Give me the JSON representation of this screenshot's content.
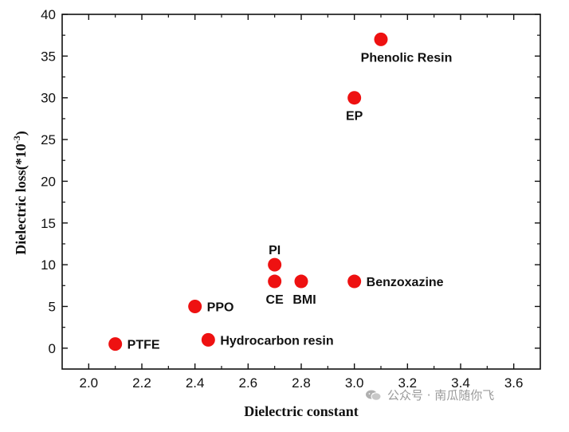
{
  "chart_data": {
    "type": "scatter",
    "xlabel": "Dielectric constant",
    "ylabel": "Dielectric loss(*10",
    "ylabel_sup": "-3",
    "ylabel_tail": ")",
    "xlim": [
      1.9,
      3.7
    ],
    "ylim": [
      -2.5,
      40
    ],
    "x_ticks": [
      2.0,
      2.2,
      2.4,
      2.6,
      2.8,
      3.0,
      3.2,
      3.4,
      3.6
    ],
    "x_tick_labels": [
      "2.0",
      "2.2",
      "2.4",
      "2.6",
      "2.8",
      "3.0",
      "3.2",
      "3.4",
      "3.6"
    ],
    "y_ticks": [
      0,
      5,
      10,
      15,
      20,
      25,
      30,
      35,
      40
    ],
    "y_tick_labels": [
      "0",
      "5",
      "10",
      "15",
      "20",
      "25",
      "30",
      "35",
      "40"
    ],
    "grid": false,
    "marker_color": "#ee1111",
    "points": [
      {
        "label": "PTFE",
        "x": 2.1,
        "y": 0.5,
        "label_pos": "right"
      },
      {
        "label": "PPO",
        "x": 2.4,
        "y": 5,
        "label_pos": "right"
      },
      {
        "label": "Hydrocarbon resin",
        "x": 2.45,
        "y": 1,
        "label_pos": "right"
      },
      {
        "label": "PI",
        "x": 2.7,
        "y": 10,
        "label_pos": "above"
      },
      {
        "label": "CE",
        "x": 2.7,
        "y": 8,
        "label_pos": "below"
      },
      {
        "label": "BMI",
        "x": 2.8,
        "y": 8,
        "label_pos": "below-right"
      },
      {
        "label": "Benzoxazine",
        "x": 3.0,
        "y": 8,
        "label_pos": "right"
      },
      {
        "label": "EP",
        "x": 3.0,
        "y": 30,
        "label_pos": "below"
      },
      {
        "label": "Phenolic Resin",
        "x": 3.1,
        "y": 37,
        "label_pos": "below-right"
      }
    ]
  },
  "watermark": {
    "icon": "wechat-icon",
    "text": "公众号 · 南瓜随你飞"
  }
}
